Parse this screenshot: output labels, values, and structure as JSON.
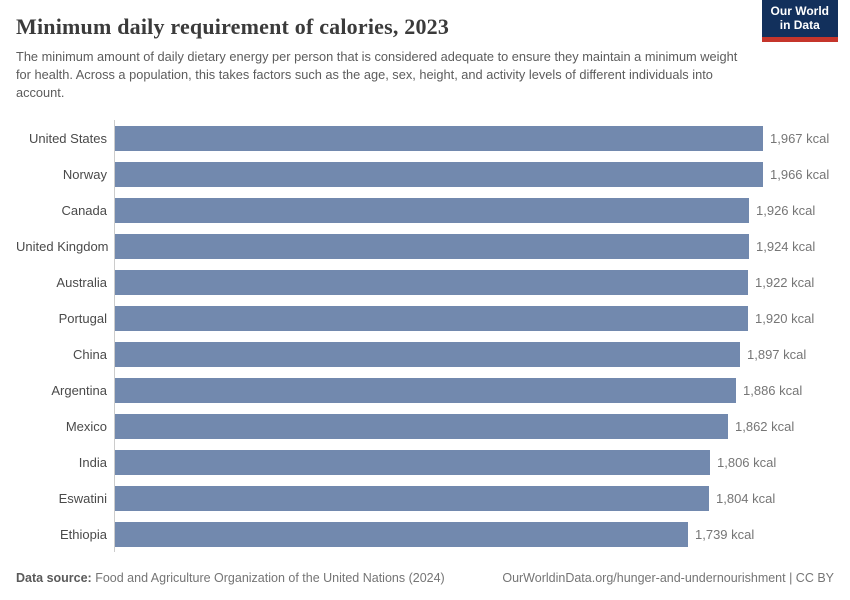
{
  "header": {
    "title": "Minimum daily requirement of calories, 2023",
    "subtitle": "The minimum amount of daily dietary energy per person that is considered adequate to ensure they maintain a minimum weight for health. Across a population, this takes factors such as the age, sex, height, and activity levels of different individuals into account.",
    "logo": {
      "line1": "Our World",
      "line2": "in Data"
    }
  },
  "chart_data": {
    "type": "bar",
    "orientation": "horizontal",
    "title": "Minimum daily requirement of calories, 2023",
    "categories": [
      "United States",
      "Norway",
      "Canada",
      "United Kingdom",
      "Australia",
      "Portugal",
      "China",
      "Argentina",
      "Mexico",
      "India",
      "Eswatini",
      "Ethiopia"
    ],
    "values": [
      1967,
      1966,
      1926,
      1924,
      1922,
      1920,
      1897,
      1886,
      1862,
      1806,
      1804,
      1739
    ],
    "value_labels": [
      "1,967 kcal",
      "1,966 kcal",
      "1,926 kcal",
      "1,924 kcal",
      "1,922 kcal",
      "1,920 kcal",
      "1,897 kcal",
      "1,886 kcal",
      "1,862 kcal",
      "1,806 kcal",
      "1,804 kcal",
      "1,739 kcal"
    ],
    "unit": "kcal",
    "xlabel": "",
    "ylabel": "",
    "xlim": [
      0,
      1967
    ],
    "grid": false,
    "legend": "none",
    "value_labels_position": "end-of-bar"
  },
  "footer": {
    "source_label": "Data source:",
    "source_text": " Food and Agriculture Organization of the United Nations (2024)",
    "attribution": "OurWorldinData.org/hunger-and-undernourishment | CC BY"
  },
  "colors": {
    "bar": "#7289ae",
    "axis_line": "#cccccc",
    "logo_bg": "#12305c",
    "logo_accent": "#c5352b"
  }
}
